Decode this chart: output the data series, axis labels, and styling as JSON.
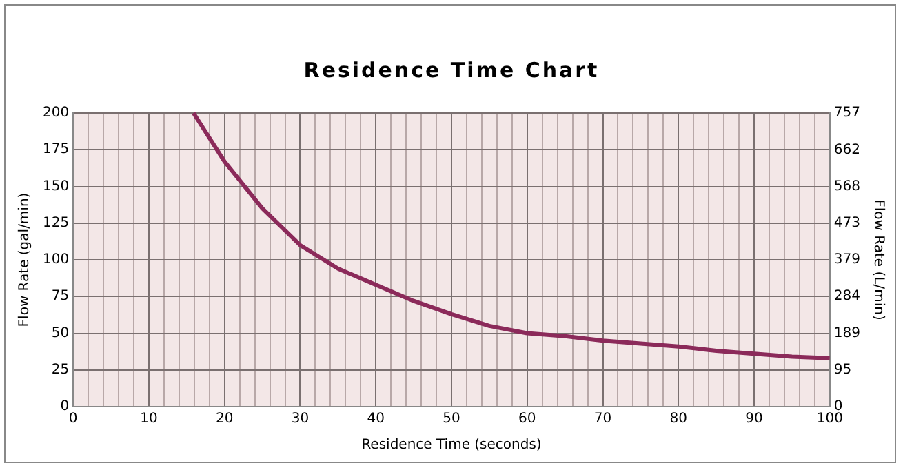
{
  "chart_data": {
    "type": "line",
    "title": "Residence Time Chart",
    "xlabel": "Residence Time (seconds)",
    "ylabel": "Flow Rate (gal/min)",
    "y2label": "Flow Rate (L/min)",
    "x": [
      15.9,
      20,
      25,
      30,
      35,
      40,
      45,
      50,
      55,
      60,
      65,
      70,
      75,
      80,
      85,
      90,
      95,
      100
    ],
    "series": [
      {
        "color": "#8b2a5a",
        "values": [
          200,
          167,
          135,
          110,
          94,
          83,
          72,
          63,
          55,
          50,
          48,
          45,
          43,
          41,
          38,
          36,
          34,
          33
        ]
      }
    ],
    "xlim": [
      0,
      100
    ],
    "xticks": [
      0,
      {
        "value": 2,
        "label": null
      },
      {
        "value": 4,
        "label": null
      },
      {
        "value": 6,
        "label": null
      },
      {
        "value": 8,
        "label": null
      },
      10,
      {
        "value": 12,
        "label": null
      },
      {
        "value": 14,
        "label": null
      },
      {
        "value": 16,
        "label": null
      },
      {
        "value": 18,
        "label": null
      },
      20,
      {
        "value": 22,
        "label": null
      },
      {
        "value": 24,
        "label": null
      },
      {
        "value": 26,
        "label": null
      },
      {
        "value": 28,
        "label": null
      },
      30,
      {
        "value": 32,
        "label": null
      },
      {
        "value": 34,
        "label": null
      },
      {
        "value": 36,
        "label": null
      },
      {
        "value": 38,
        "label": null
      },
      40,
      {
        "value": 42,
        "label": null
      },
      {
        "value": 44,
        "label": null
      },
      {
        "value": 46,
        "label": null
      },
      {
        "value": 48,
        "label": null
      },
      50,
      {
        "value": 52,
        "label": null
      },
      {
        "value": 54,
        "label": null
      },
      {
        "value": 56,
        "label": null
      },
      {
        "value": 58,
        "label": null
      },
      60,
      {
        "value": 62,
        "label": null
      },
      {
        "value": 64,
        "label": null
      },
      {
        "value": 66,
        "label": null
      },
      {
        "value": 68,
        "label": null
      },
      70,
      {
        "value": 72,
        "label": null
      },
      {
        "value": 74,
        "label": null
      },
      {
        "value": 76,
        "label": null
      },
      {
        "value": 78,
        "label": null
      },
      80,
      {
        "value": 82,
        "label": null
      },
      {
        "value": 84,
        "label": null
      },
      {
        "value": 86,
        "label": null
      },
      {
        "value": 88,
        "label": null
      },
      90,
      {
        "value": 92,
        "label": null
      },
      {
        "value": 94,
        "label": null
      },
      {
        "value": 96,
        "label": null
      },
      {
        "value": 98,
        "label": null
      },
      100
    ],
    "ylim": [
      0,
      200
    ],
    "yticks": [
      0,
      25,
      50,
      75,
      100,
      125,
      150,
      175,
      200
    ],
    "y2lim": [
      0,
      757
    ],
    "y2ticks": [
      0,
      95,
      189,
      284,
      379,
      473,
      568,
      662,
      757
    ],
    "grid": true,
    "legend": false,
    "marker": "none",
    "line_style": "solid"
  }
}
